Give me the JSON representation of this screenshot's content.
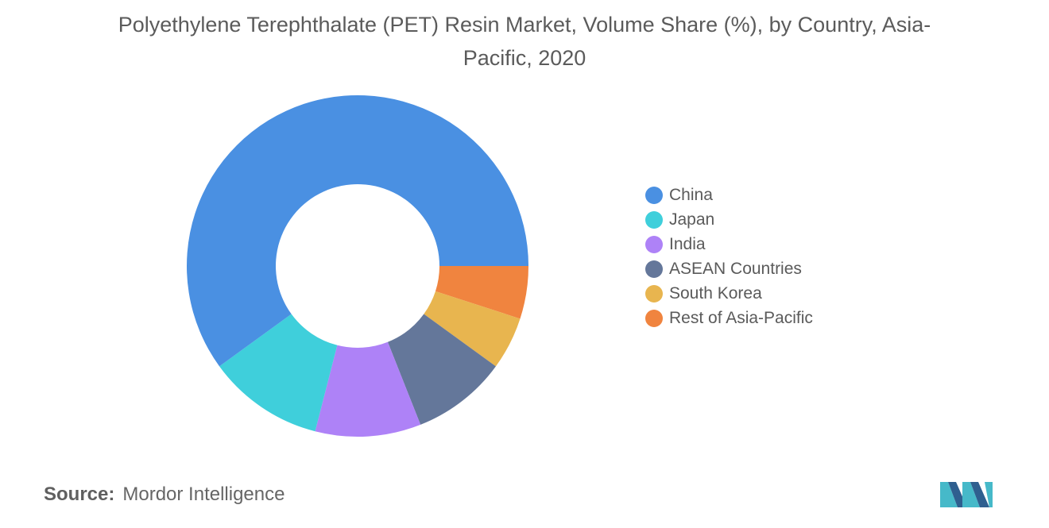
{
  "chart_data": {
    "type": "pie",
    "variant": "donut",
    "title": "Polyethylene Terephthalate (PET) Resin Market, Volume Share (%), by Country, Asia-Pacific, 2020",
    "categories": [
      "China",
      "Japan",
      "India",
      "ASEAN Countries",
      "South Korea",
      "Rest of Asia-Pacific"
    ],
    "values": [
      60,
      11,
      10,
      9,
      5,
      5
    ],
    "colors": [
      "#4a90e2",
      "#3fcfdb",
      "#ae82f7",
      "#64779a",
      "#e8b54f",
      "#f0843f"
    ],
    "legend_position": "right"
  },
  "source": {
    "label": "Source:",
    "text": "Mordor Intelligence"
  },
  "logo": {
    "icon": "mordor-intelligence-logo",
    "colors": [
      "#46b9c9",
      "#2f5f8f"
    ]
  }
}
